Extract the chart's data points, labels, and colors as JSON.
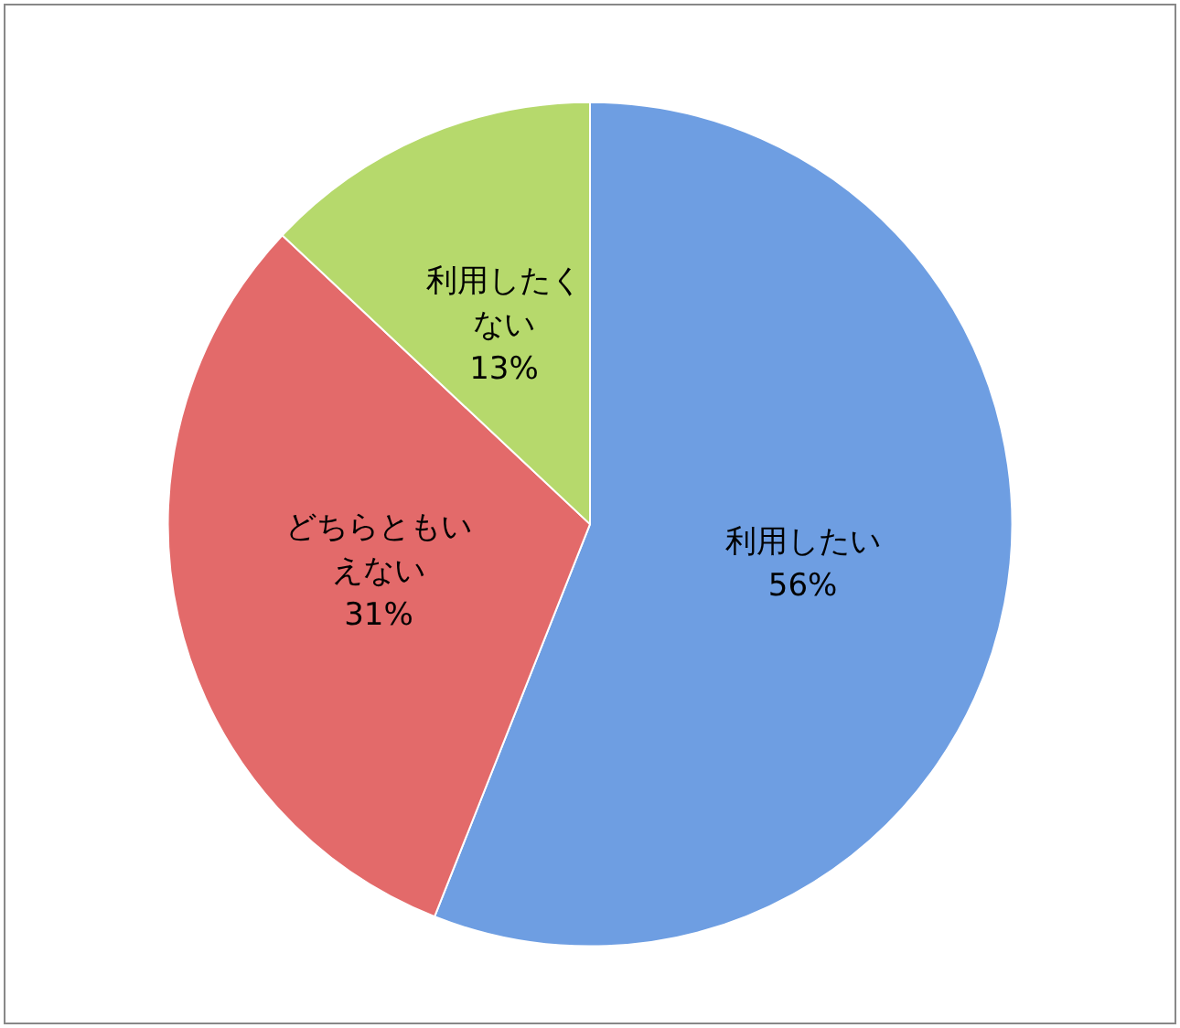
{
  "chart_data": {
    "type": "pie",
    "categories": [
      "利用したい",
      "どちらともいえない",
      "利用したくない"
    ],
    "values": [
      56,
      31,
      13
    ],
    "colors": [
      "#6e9ee2",
      "#e36a6a",
      "#b6d96c"
    ],
    "value_labels": [
      "56%",
      "31%",
      "13%"
    ],
    "legend": false
  }
}
